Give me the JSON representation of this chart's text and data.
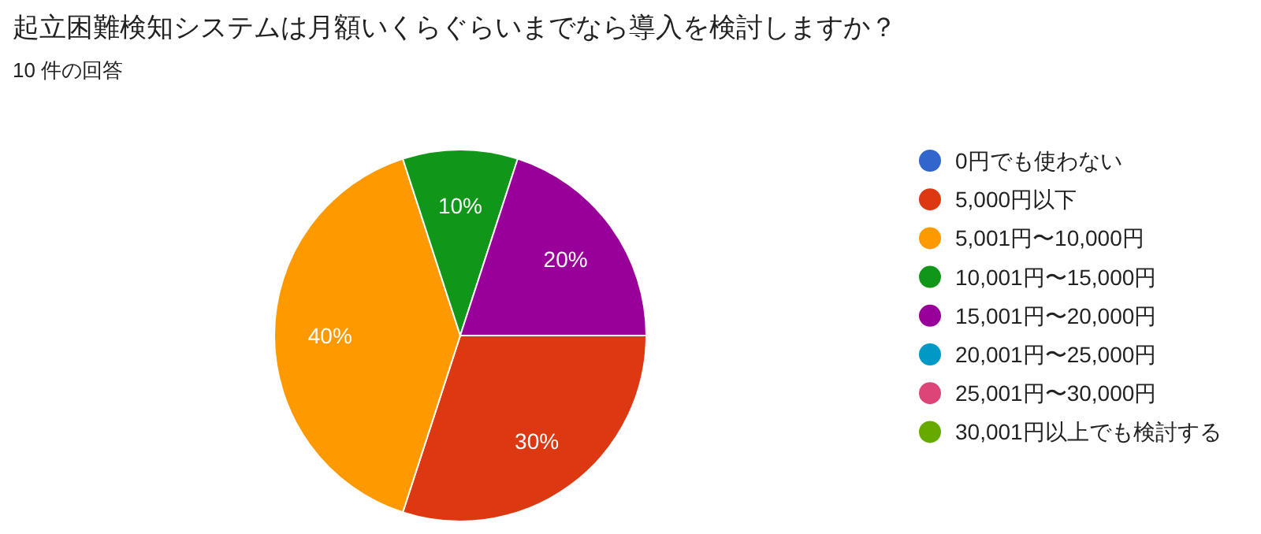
{
  "chart_data": {
    "type": "pie",
    "title": "起立困難検知システムは月額いくらぐらいまでなら導入を検討しますか？",
    "subtitle": "10 件の回答",
    "categories": [
      "0円でも使わない",
      "5,000円以下",
      "5,001円〜10,000円",
      "10,001円〜15,000円",
      "15,001円〜20,000円",
      "20,001円〜25,000円",
      "25,001円〜30,000円",
      "30,001円以上でも検討する"
    ],
    "values": [
      0,
      30,
      40,
      10,
      20,
      0,
      0,
      0
    ],
    "colors": [
      "#3366cc",
      "#dc3912",
      "#ff9900",
      "#109618",
      "#990099",
      "#0099c6",
      "#dd4477",
      "#66aa00"
    ],
    "value_labels": [
      null,
      "30%",
      "40%",
      "10%",
      "20%",
      null,
      null,
      null
    ],
    "legend": "right"
  }
}
